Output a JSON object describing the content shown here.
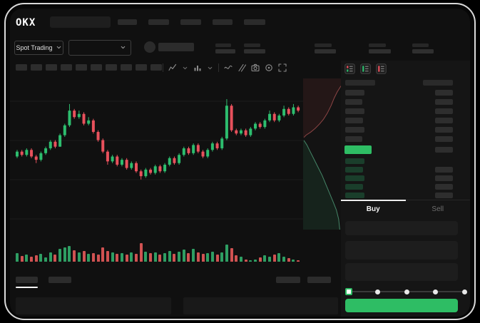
{
  "app": {
    "logo_text": "OKX"
  },
  "header": {
    "search": {
      "placeholder": ""
    },
    "nav_placeholders": [
      27,
      29,
      29,
      28,
      30
    ]
  },
  "instrument_bar": {
    "market_type": {
      "label": "Spot Trading"
    },
    "pair_selector": {
      "selected": ""
    },
    "stat_groups": [
      {
        "top_w": 22,
        "bottom_w": 28
      },
      {
        "top_w": 23,
        "bottom_w": 30
      },
      {
        "top_w": 24,
        "bottom_w": 30
      },
      {
        "top_w": 24,
        "bottom_w": 31
      },
      {
        "top_w": 23,
        "bottom_w": 30
      }
    ]
  },
  "chart_toolbar": {
    "timeframe_placeholder_count": 10,
    "icon_groups": [
      {
        "name": "chart-style-icon",
        "chevron": true
      },
      {
        "name": "indicators-icon",
        "chevron": true
      },
      {
        "name": "line-tool-icon",
        "chevron": false
      },
      {
        "name": "draw-tools-icon",
        "chevron": false
      },
      {
        "name": "camera-icon",
        "chevron": false
      },
      {
        "name": "settings-icon",
        "chevron": false
      },
      {
        "name": "fullscreen-icon",
        "chevron": false
      }
    ]
  },
  "chart_data": {
    "type": "candlestick",
    "title": "",
    "axes_labeled": false,
    "price_scale_note": "no axis labels visible in mock; values normalized 0-100",
    "candles": {
      "open": [
        55,
        58,
        56,
        59,
        55,
        53,
        57,
        60,
        64,
        61,
        68,
        74,
        83,
        79,
        81,
        75,
        77,
        70,
        65,
        58,
        52,
        55,
        50,
        53,
        48,
        51,
        46,
        43,
        47,
        45,
        49,
        46,
        50,
        54,
        51,
        56,
        60,
        57,
        62,
        58,
        55,
        59,
        63,
        60,
        66,
        86,
        71,
        69,
        71,
        68,
        72,
        75,
        73,
        77,
        81,
        77,
        80,
        84,
        81,
        85
      ],
      "high": [
        59,
        59,
        60,
        60,
        56,
        58,
        61,
        65,
        65,
        69,
        75,
        87,
        84,
        83,
        82,
        79,
        78,
        71,
        66,
        59,
        56,
        56,
        54,
        54,
        52,
        52,
        47,
        48,
        48,
        50,
        50,
        51,
        55,
        55,
        57,
        61,
        61,
        63,
        63,
        59,
        60,
        64,
        64,
        67,
        90,
        87,
        72,
        72,
        72,
        73,
        76,
        76,
        78,
        83,
        82,
        81,
        86,
        85,
        87,
        86
      ],
      "low": [
        54,
        55,
        55,
        54,
        51,
        52,
        56,
        59,
        60,
        61,
        67,
        73,
        78,
        78,
        74,
        74,
        69,
        64,
        57,
        50,
        51,
        49,
        49,
        47,
        47,
        45,
        41,
        42,
        44,
        44,
        45,
        45,
        49,
        50,
        50,
        55,
        56,
        56,
        57,
        54,
        54,
        58,
        59,
        59,
        65,
        70,
        68,
        68,
        67,
        67,
        71,
        72,
        72,
        76,
        76,
        76,
        79,
        80,
        80,
        82
      ],
      "close": [
        58,
        56,
        59,
        55,
        53,
        57,
        60,
        64,
        61,
        68,
        74,
        83,
        79,
        81,
        75,
        77,
        70,
        65,
        58,
        52,
        55,
        50,
        53,
        48,
        51,
        46,
        43,
        47,
        45,
        49,
        46,
        50,
        54,
        51,
        56,
        60,
        57,
        62,
        58,
        55,
        59,
        63,
        60,
        66,
        86,
        71,
        69,
        71,
        68,
        72,
        75,
        73,
        77,
        81,
        77,
        80,
        84,
        81,
        85,
        83
      ]
    },
    "volume": [
      12,
      8,
      10,
      7,
      9,
      11,
      6,
      13,
      10,
      18,
      20,
      22,
      16,
      13,
      15,
      11,
      12,
      10,
      20,
      15,
      13,
      11,
      12,
      10,
      13,
      11,
      26,
      14,
      12,
      13,
      10,
      12,
      15,
      11,
      14,
      17,
      12,
      18,
      13,
      11,
      12,
      14,
      10,
      13,
      24,
      19,
      9,
      7,
      3,
      2,
      3,
      6,
      9,
      7,
      10,
      12,
      7,
      5,
      3,
      2
    ],
    "depth": {
      "asks": [
        [
          1.0,
          0.05
        ],
        [
          0.9,
          0.09
        ],
        [
          0.82,
          0.13
        ],
        [
          0.74,
          0.18
        ],
        [
          0.64,
          0.23
        ],
        [
          0.54,
          0.27
        ],
        [
          0.44,
          0.3
        ],
        [
          0.32,
          0.33
        ],
        [
          0.2,
          0.355
        ],
        [
          0.08,
          0.375
        ],
        [
          0.02,
          0.39
        ]
      ],
      "bids": [
        [
          0.02,
          0.41
        ],
        [
          0.1,
          0.44
        ],
        [
          0.18,
          0.48
        ],
        [
          0.28,
          0.53
        ],
        [
          0.4,
          0.59
        ],
        [
          0.5,
          0.64
        ],
        [
          0.6,
          0.7
        ],
        [
          0.7,
          0.76
        ],
        [
          0.8,
          0.82
        ],
        [
          0.88,
          0.87
        ],
        [
          0.94,
          0.93
        ],
        [
          0.97,
          1.0
        ]
      ]
    }
  },
  "order_book": {
    "view_icons": [
      "book-combined-icon",
      "book-bids-icon",
      "book-asks-icon"
    ],
    "column_headers": {
      "left_w": 42,
      "right_w": 42
    },
    "asks": [
      {
        "l": 27,
        "r": 25
      },
      {
        "l": 24,
        "r": 25
      },
      {
        "l": 27,
        "r": 25
      },
      {
        "l": 25,
        "r": 25
      },
      {
        "l": 27,
        "r": 25
      },
      {
        "l": 24,
        "r": 25
      }
    ],
    "last_price": {
      "w": 38,
      "r": 25,
      "direction": "up"
    },
    "bids": [
      {
        "l": 27,
        "r": 0
      },
      {
        "l": 25,
        "r": 25
      },
      {
        "l": 27,
        "r": 25
      },
      {
        "l": 25,
        "r": 25
      },
      {
        "l": 27,
        "r": 25
      }
    ]
  },
  "trade_panel": {
    "tabs": [
      {
        "label": "Buy",
        "active": true
      },
      {
        "label": "Sell",
        "active": false
      }
    ],
    "input_count": 3,
    "slider": {
      "stops": 5,
      "active_stop": 0
    },
    "submit_label": ""
  },
  "bottom_bar": {
    "tab_placeholders": [
      31,
      32
    ],
    "right_placeholders": [
      34,
      33
    ],
    "panel_placeholders": 2
  },
  "colors": {
    "up": "#2dbd6e",
    "down": "#e8515c",
    "accent": "#2ebd64",
    "volume_up": "#2e9e63",
    "volume_down": "#d05252",
    "bid_row": "#1a3e2b",
    "ask_row": "#2e2e2e",
    "placeholder": "#2c2c2c",
    "grid": "#1d1d1d"
  }
}
